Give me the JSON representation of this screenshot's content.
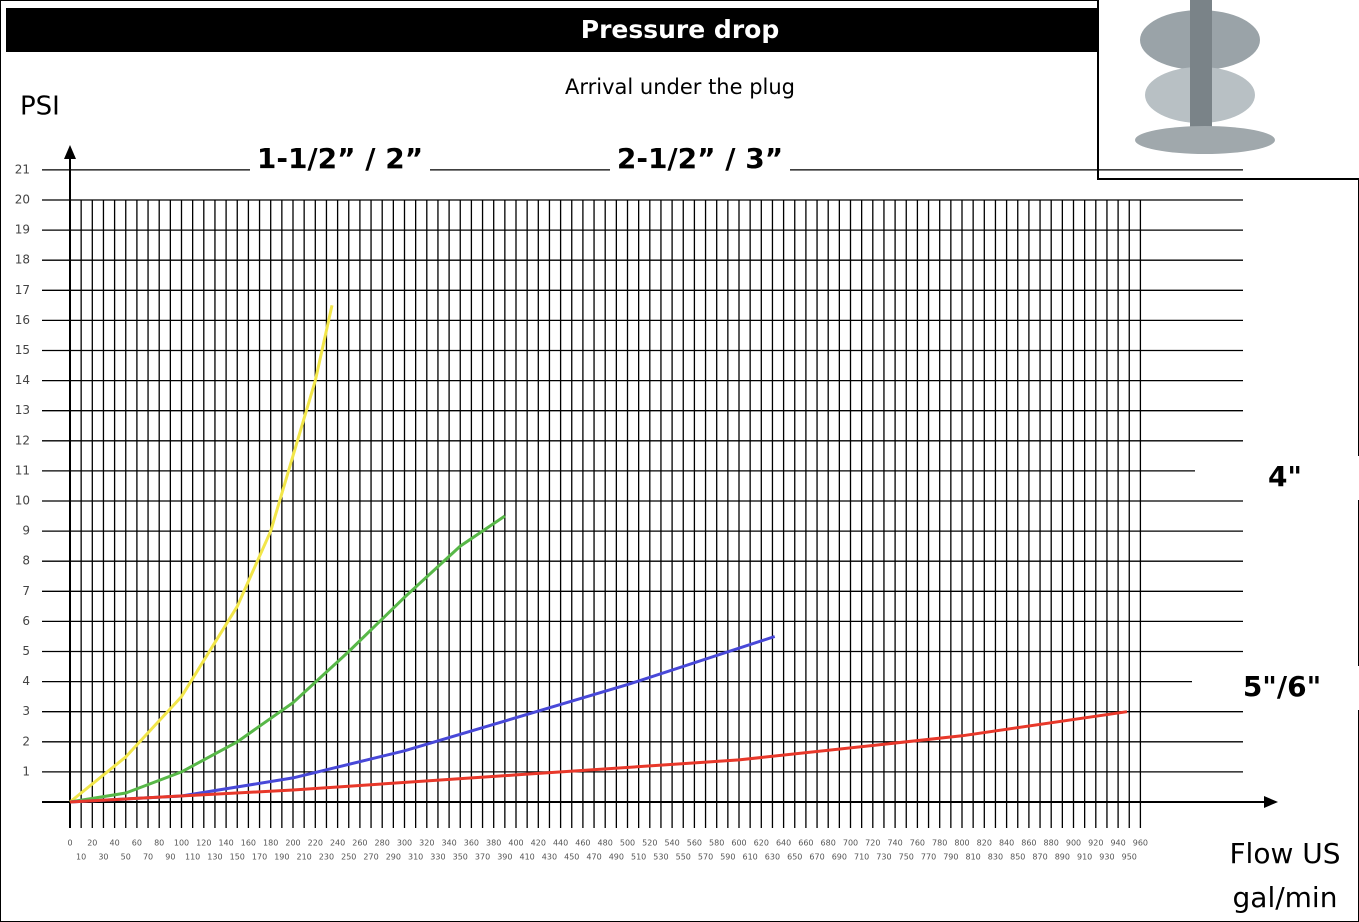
{
  "chart_data": {
    "type": "line",
    "title": "Pressure drop",
    "subtitle": "Arrival under the plug",
    "y_label": "PSI",
    "x_label": "Flow US gal/min",
    "xlim": [
      0,
      1050
    ],
    "ylim": [
      0,
      22
    ],
    "xticks": [
      0,
      10,
      20,
      30,
      40,
      50,
      60,
      70,
      80,
      90,
      100,
      110,
      120,
      130,
      140,
      150,
      160,
      170,
      180,
      190,
      200,
      210,
      220,
      230,
      240,
      250,
      260,
      270,
      280,
      290,
      300,
      310,
      320,
      330,
      340,
      350,
      360,
      370,
      380,
      390,
      400,
      410,
      420,
      430,
      440,
      450,
      460,
      470,
      480,
      490,
      500,
      510,
      520,
      530,
      540,
      550,
      560,
      570,
      580,
      590,
      600,
      610,
      620,
      630,
      640,
      650,
      660,
      670,
      680,
      690,
      700,
      710,
      720,
      730,
      740,
      750,
      760,
      770,
      780,
      790,
      800,
      810,
      820,
      830,
      840,
      850,
      860,
      870,
      880,
      890,
      900,
      910,
      920,
      930,
      940,
      950,
      960
    ],
    "yticks": [
      1,
      2,
      3,
      4,
      5,
      6,
      7,
      8,
      9,
      10,
      11,
      12,
      13,
      14,
      15,
      16,
      17,
      18,
      19,
      20,
      21
    ],
    "grid": true,
    "series": [
      {
        "name": "1-1/2” / 2”",
        "color": "#f2e64a",
        "x": [
          0,
          50,
          100,
          150,
          180,
          200,
          220,
          235
        ],
        "values": [
          0,
          1.5,
          3.5,
          6.5,
          9,
          11.5,
          14,
          16.5
        ]
      },
      {
        "name": "2-1/2” / 3”",
        "color": "#58b848",
        "x": [
          0,
          50,
          100,
          150,
          200,
          250,
          300,
          350,
          390
        ],
        "values": [
          0,
          0.3,
          1,
          2,
          3.3,
          5,
          6.8,
          8.5,
          9.5
        ]
      },
      {
        "name": "4\"",
        "color": "#4848d8",
        "x": [
          0,
          100,
          200,
          300,
          400,
          500,
          632
        ],
        "values": [
          0,
          0.2,
          0.8,
          1.7,
          2.8,
          3.9,
          5.5
        ]
      },
      {
        "name": "5\"/6\"",
        "color": "#e8382a",
        "x": [
          0,
          200,
          400,
          600,
          800,
          948
        ],
        "values": [
          0,
          0.4,
          0.9,
          1.4,
          2.2,
          3.0
        ]
      }
    ]
  }
}
